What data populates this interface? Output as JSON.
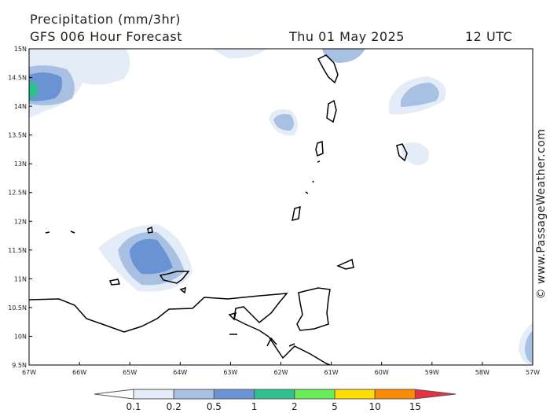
{
  "header": {
    "title": "Precipitation (mm/3hr)",
    "subtitle": "GFS 006 Hour Forecast",
    "date": "Thu 01 May 2025",
    "time": "12 UTC"
  },
  "map": {
    "lat_labels": [
      "15N",
      "14.5N",
      "14N",
      "13.5N",
      "13N",
      "12.5N",
      "12N",
      "11.5N",
      "11N",
      "10.5N",
      "10N",
      "9.5N"
    ],
    "lon_labels": [
      "67W",
      "66W",
      "65W",
      "64W",
      "63W",
      "62W",
      "61W",
      "60W",
      "59W",
      "58W",
      "57W"
    ]
  },
  "legend": {
    "labels": [
      "0.1",
      "0.2",
      "0.5",
      "1",
      "2",
      "5",
      "10",
      "15"
    ]
  },
  "credit": "© www.PassageWeather.com"
}
